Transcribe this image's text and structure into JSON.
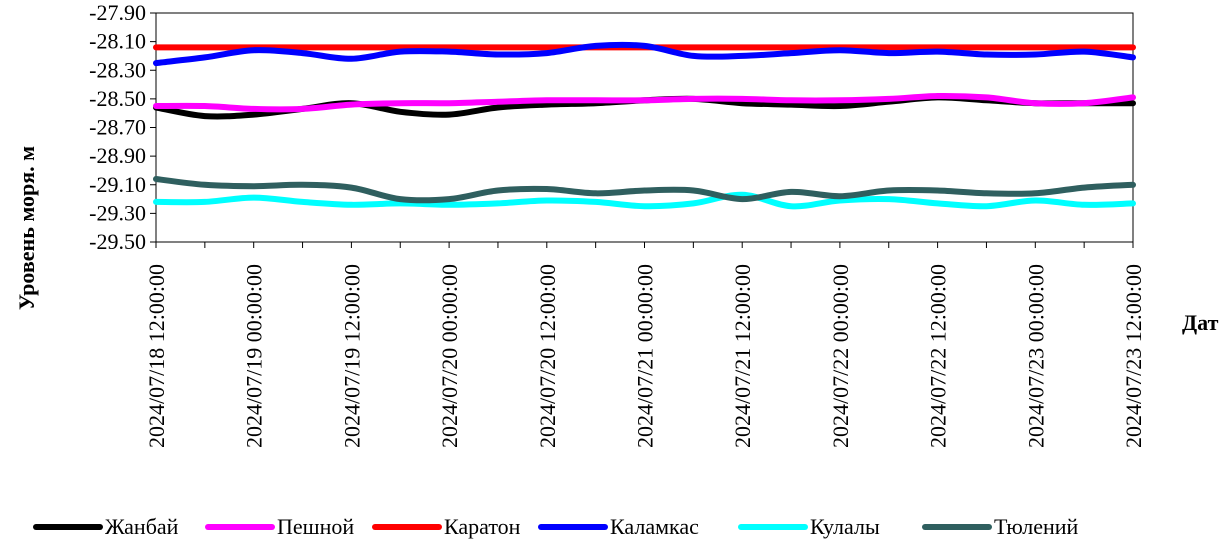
{
  "chart_data": {
    "type": "line",
    "xlabel": "Дата",
    "ylabel": "Уровень моря. м",
    "ylim": [
      -29.5,
      -27.9
    ],
    "yticks": [
      "-27.90",
      "-28.10",
      "-28.30",
      "-28.50",
      "-28.70",
      "-28.90",
      "-29.10",
      "-29.30",
      "-29.50"
    ],
    "xticks": [
      "2024/07/18 12:00:00",
      "2024/07/19 00:00:00",
      "2024/07/19 12:00:00",
      "2024/07/20 00:00:00",
      "2024/07/20 12:00:00",
      "2024/07/21 00:00:00",
      "2024/07/21 12:00:00",
      "2024/07/22 00:00:00",
      "2024/07/22 12:00:00",
      "2024/07/23 00:00:00",
      "2024/07/23 12:00:00"
    ],
    "xlim": [
      "2024/07/18 12:00:00",
      "2024/07/23 12:00:00"
    ],
    "grid": false,
    "legend_position": "bottom",
    "x": [
      "2024/07/18 12:00:00",
      "2024/07/18 18:00:00",
      "2024/07/19 00:00:00",
      "2024/07/19 06:00:00",
      "2024/07/19 12:00:00",
      "2024/07/19 18:00:00",
      "2024/07/20 00:00:00",
      "2024/07/20 06:00:00",
      "2024/07/20 12:00:00",
      "2024/07/20 18:00:00",
      "2024/07/21 00:00:00",
      "2024/07/21 06:00:00",
      "2024/07/21 12:00:00",
      "2024/07/21 18:00:00",
      "2024/07/22 00:00:00",
      "2024/07/22 06:00:00",
      "2024/07/22 12:00:00",
      "2024/07/22 18:00:00",
      "2024/07/23 00:00:00",
      "2024/07/23 06:00:00",
      "2024/07/23 12:00:00"
    ],
    "series": [
      {
        "name": "Жанбай",
        "color": "#000000",
        "values": [
          -28.56,
          -28.62,
          -28.61,
          -28.57,
          -28.53,
          -28.59,
          -28.61,
          -28.56,
          -28.54,
          -28.53,
          -28.51,
          -28.5,
          -28.53,
          -28.54,
          -28.55,
          -28.52,
          -28.49,
          -28.51,
          -28.53,
          -28.53,
          -28.53
        ]
      },
      {
        "name": "Пешной",
        "color": "#ff00ff",
        "values": [
          -28.55,
          -28.55,
          -28.57,
          -28.57,
          -28.54,
          -28.53,
          -28.53,
          -28.52,
          -28.51,
          -28.51,
          -28.51,
          -28.5,
          -28.5,
          -28.51,
          -28.51,
          -28.5,
          -28.48,
          -28.49,
          -28.53,
          -28.53,
          -28.49
        ]
      },
      {
        "name": "Каратон",
        "color": "#ff0000",
        "values": [
          -28.14,
          -28.14,
          -28.14,
          -28.14,
          -28.14,
          -28.14,
          -28.14,
          -28.14,
          -28.14,
          -28.14,
          -28.14,
          -28.14,
          -28.14,
          -28.14,
          -28.14,
          -28.14,
          -28.14,
          -28.14,
          -28.14,
          -28.14,
          -28.14
        ]
      },
      {
        "name": "Каламкас",
        "color": "#0000ff",
        "values": [
          -28.25,
          -28.21,
          -28.16,
          -28.18,
          -28.22,
          -28.17,
          -28.17,
          -28.19,
          -28.18,
          -28.13,
          -28.13,
          -28.2,
          -28.2,
          -28.18,
          -28.16,
          -28.18,
          -28.17,
          -28.19,
          -28.19,
          -28.17,
          -28.21
        ]
      },
      {
        "name": "Кулалы",
        "color": "#00ffff",
        "values": [
          -29.22,
          -29.22,
          -29.19,
          -29.22,
          -29.24,
          -29.23,
          -29.24,
          -29.23,
          -29.21,
          -29.22,
          -29.25,
          -29.23,
          -29.17,
          -29.25,
          -29.21,
          -29.2,
          -29.23,
          -29.25,
          -29.21,
          -29.24,
          -29.23
        ]
      },
      {
        "name": "Тюлений",
        "color": "#2f5f5f",
        "values": [
          -29.06,
          -29.1,
          -29.11,
          -29.1,
          -29.12,
          -29.2,
          -29.2,
          -29.14,
          -29.13,
          -29.16,
          -29.14,
          -29.14,
          -29.2,
          -29.15,
          -29.18,
          -29.14,
          -29.14,
          -29.16,
          -29.16,
          -29.12,
          -29.1
        ]
      }
    ]
  }
}
